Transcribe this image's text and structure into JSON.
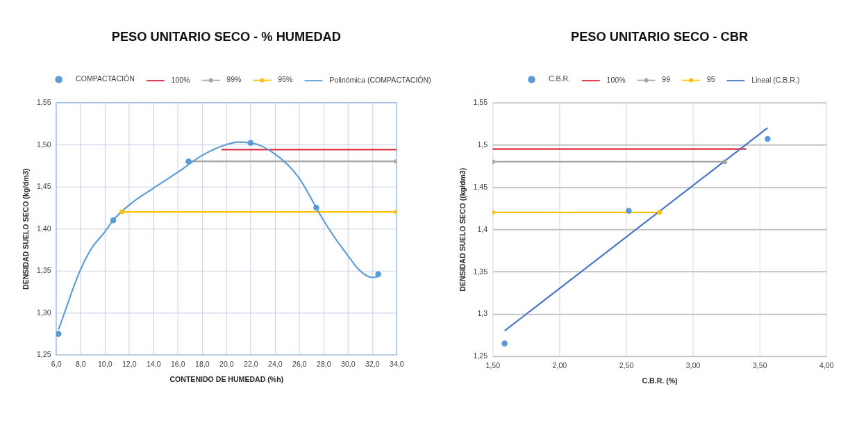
{
  "chart_data": [
    {
      "type": "scatter",
      "title": "PESO UNITARIO SECO - % HUMEDAD",
      "xlabel": "CONTENIDO DE HUMEDAD (%h)",
      "ylabel": "DENSIDAD SUELO SECO (kg/dm3)",
      "xlim": [
        6,
        34
      ],
      "xticks": [
        {
          "value": 6,
          "label": "6,0"
        },
        {
          "value": 8,
          "label": "8,0"
        },
        {
          "value": 10,
          "label": "10,0"
        },
        {
          "value": 12,
          "label": "12,0"
        },
        {
          "value": 14,
          "label": "14,0"
        },
        {
          "value": 16,
          "label": "16,0"
        },
        {
          "value": 18,
          "label": "18,0"
        },
        {
          "value": 20,
          "label": "20,0"
        },
        {
          "value": 22,
          "label": "22,0"
        },
        {
          "value": 24,
          "label": "24,0"
        },
        {
          "value": 26,
          "label": "26,0"
        },
        {
          "value": 28,
          "label": "28,0"
        },
        {
          "value": 30,
          "label": "30,0"
        },
        {
          "value": 32,
          "label": "32,0"
        },
        {
          "value": 34,
          "label": "34,0"
        }
      ],
      "ylim": [
        1.25,
        1.55
      ],
      "yticks": [
        {
          "value": 1.25,
          "label": "1,25"
        },
        {
          "value": 1.3,
          "label": "1,30"
        },
        {
          "value": 1.35,
          "label": "1,35"
        },
        {
          "value": 1.4,
          "label": "1,40"
        },
        {
          "value": 1.45,
          "label": "1,45"
        },
        {
          "value": 1.5,
          "label": "1,50"
        },
        {
          "value": 1.55,
          "label": "1,55"
        }
      ],
      "grid": true,
      "legend": "top",
      "series": [
        {
          "name": "COMPACTACIÓN",
          "marker": "circle",
          "color": "#5b9bd5",
          "x": [
            6.2,
            10.7,
            16.9,
            22.0,
            27.4,
            32.5
          ],
          "values": [
            1.275,
            1.41,
            1.48,
            1.502,
            1.425,
            1.346
          ]
        },
        {
          "name": "100%",
          "type": "line",
          "color": "#d9263a",
          "x": [
            19.6,
            34
          ],
          "values": [
            1.494,
            1.494
          ]
        },
        {
          "name": "99%",
          "type": "line",
          "marker": "circle",
          "color": "#a5a5a5",
          "x": [
            16.9,
            34
          ],
          "values": [
            1.48,
            1.48
          ]
        },
        {
          "name": "95%",
          "type": "line",
          "marker": "circle",
          "color": "#ffc000",
          "x": [
            11.4,
            34
          ],
          "values": [
            1.42,
            1.42
          ]
        },
        {
          "name": "Polinómica (COMPACTACIÓN)",
          "type": "line",
          "color": "#5b9bd5",
          "x": [
            6.2,
            6.7,
            7.3,
            8.0,
            8.8,
            10.0,
            10.7,
            12.0,
            14.0,
            16.0,
            18.0,
            20.0,
            21.0,
            22.0,
            24.0,
            26.0,
            27.4,
            28.0,
            30.0,
            31.0,
            32.0,
            32.5
          ],
          "values": [
            1.28,
            1.3,
            1.325,
            1.351,
            1.374,
            1.396,
            1.41,
            1.428,
            1.448,
            1.467,
            1.487,
            1.5,
            1.503,
            1.502,
            1.489,
            1.46,
            1.425,
            1.41,
            1.368,
            1.35,
            1.342,
            1.343
          ]
        }
      ]
    },
    {
      "type": "scatter",
      "title": "PESO UNITARIO SECO - CBR",
      "xlabel": "C.B.R. (%)",
      "ylabel": "DENSIDAD SUELO SECO ((kg/dm3)",
      "xlim": [
        1.5,
        4
      ],
      "xticks": [
        {
          "value": 1.5,
          "label": "1,50"
        },
        {
          "value": 2,
          "label": "2,00"
        },
        {
          "value": 2.5,
          "label": "2,50"
        },
        {
          "value": 3,
          "label": "3,00"
        },
        {
          "value": 3.5,
          "label": "3,50"
        },
        {
          "value": 4,
          "label": "4,00"
        }
      ],
      "ylim": [
        1.25,
        1.55
      ],
      "yticks": [
        {
          "value": 1.25,
          "label": "1,25"
        },
        {
          "value": 1.3,
          "label": "1,3"
        },
        {
          "value": 1.35,
          "label": "1,35"
        },
        {
          "value": 1.4,
          "label": "1,4"
        },
        {
          "value": 1.45,
          "label": "1,45"
        },
        {
          "value": 1.5,
          "label": "1,5"
        },
        {
          "value": 1.55,
          "label": "1,55"
        }
      ],
      "grid": true,
      "legend": "top",
      "series": [
        {
          "name": "C.B.R.",
          "marker": "circle",
          "color": "#5b9bd5",
          "x": [
            1.59,
            2.52,
            3.56
          ],
          "values": [
            1.265,
            1.422,
            1.507
          ]
        },
        {
          "name": "100%",
          "type": "line",
          "color": "#d9263a",
          "x": [
            1.5,
            3.4
          ],
          "values": [
            1.495,
            1.495
          ]
        },
        {
          "name": "99",
          "type": "line",
          "marker": "circle",
          "color": "#a5a5a5",
          "x": [
            1.5,
            3.24
          ],
          "values": [
            1.48,
            1.48
          ]
        },
        {
          "name": "95",
          "type": "line",
          "marker": "circle",
          "color": "#ffc000",
          "x": [
            1.5,
            2.75
          ],
          "values": [
            1.42,
            1.42
          ]
        },
        {
          "name": "Lineal (C.B.R.)",
          "type": "line",
          "color": "#4472c4",
          "x": [
            1.59,
            3.56
          ],
          "values": [
            1.28,
            1.52
          ]
        }
      ]
    }
  ]
}
